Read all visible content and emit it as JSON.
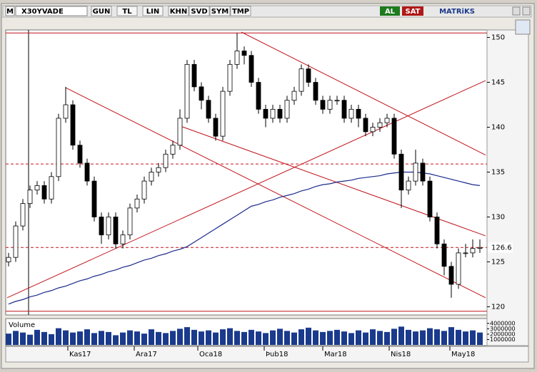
{
  "chart_data": {
    "type": "candlestick",
    "menu": "M",
    "title": "X30YVADE",
    "toolbar": [
      "GUN",
      "TL",
      "LIN",
      "KHN",
      "SVD",
      "SYM",
      "TMP"
    ],
    "buy": "AL",
    "sell": "SAT",
    "brand": "MATRiKS",
    "xlim": [
      -0.2,
      66.8
    ],
    "xticks": [
      {
        "value": 8.3,
        "label": "Kas17"
      },
      {
        "value": 17.6,
        "label": "Ara17"
      },
      {
        "value": 26.5,
        "label": "Oca18"
      },
      {
        "value": 35.8,
        "label": "Þub18"
      },
      {
        "value": 44,
        "label": "Mar18"
      },
      {
        "value": 53.3,
        "label": "Nis18"
      },
      {
        "value": 61.8,
        "label": "May18"
      }
    ],
    "ylim": [
      119.4,
      150.6
    ],
    "yticks": [
      120,
      125,
      130,
      135,
      140,
      145,
      150
    ],
    "last_price": 126.6,
    "open": [
      125,
      125.5,
      129,
      131.5,
      133,
      133.5,
      132,
      134.5,
      141,
      142.5,
      138,
      136,
      134,
      130,
      128,
      130,
      127,
      128,
      131,
      132,
      134,
      135,
      135.5,
      137,
      138,
      141,
      147,
      144.5,
      143,
      141,
      139,
      144,
      147,
      148.5,
      148,
      145,
      142,
      141,
      142,
      141,
      143,
      144,
      146.5,
      145,
      143,
      142,
      143,
      143,
      141,
      142,
      141,
      139.5,
      140,
      140.5,
      141,
      137,
      133,
      134,
      136,
      134,
      130,
      127,
      124.5,
      122.5,
      126,
      126,
      126.5
    ],
    "high": [
      126,
      129.5,
      132,
      133.5,
      134,
      134,
      135,
      141.5,
      144.5,
      143,
      138.5,
      136.5,
      134.5,
      130.5,
      130.5,
      130.5,
      128.5,
      131.5,
      132.5,
      134.5,
      135.5,
      136,
      137.5,
      138.5,
      142,
      147.5,
      147.5,
      145,
      143.5,
      141.5,
      144.5,
      147.5,
      150.5,
      149,
      148.5,
      145.5,
      142.5,
      142.5,
      142.5,
      143.5,
      144.5,
      147,
      147,
      145.5,
      143.5,
      143.5,
      143.5,
      143.5,
      142.5,
      142.5,
      141.5,
      140.5,
      141,
      141.5,
      141.5,
      137.5,
      134.5,
      137.5,
      136.5,
      134.5,
      130.5,
      127.5,
      125,
      126.5,
      127,
      127.5,
      127.5
    ],
    "low": [
      124.5,
      125,
      128.5,
      131,
      132.5,
      131.5,
      131.5,
      134,
      140.5,
      137.5,
      135.5,
      133.5,
      129.5,
      127,
      127.5,
      126.5,
      126.5,
      127.5,
      130.5,
      131.5,
      133.5,
      134.5,
      135,
      136.5,
      137.5,
      140.5,
      144,
      142,
      140.5,
      138.5,
      138.5,
      143.5,
      146.5,
      147,
      144.5,
      141.5,
      140,
      140.5,
      140.5,
      140.5,
      142.5,
      143.5,
      144.5,
      142.5,
      141.5,
      141.5,
      142.5,
      140.5,
      140.5,
      140,
      139,
      139,
      139.5,
      140,
      136.5,
      131,
      132.5,
      133.5,
      133.5,
      129.5,
      126.5,
      123.5,
      121,
      122,
      125.5,
      125.5,
      126
    ],
    "close": [
      125.5,
      129,
      131.5,
      133,
      133.5,
      132,
      134.5,
      141,
      142.5,
      138,
      136,
      134,
      130,
      128,
      130,
      127,
      128,
      131,
      132,
      134,
      135,
      135.5,
      137,
      138,
      141,
      147,
      144.5,
      143,
      141,
      139,
      144,
      147,
      148.5,
      148,
      145,
      142,
      141,
      142,
      141,
      143,
      144,
      146.5,
      145,
      143,
      142,
      143,
      143,
      141,
      142,
      141,
      139.5,
      140,
      140.5,
      141,
      137,
      133,
      134,
      136,
      134,
      130,
      127,
      124.5,
      122.5,
      126,
      126,
      126.5,
      126.6
    ],
    "up_color": "#ffffff",
    "down_color": "#000000",
    "moving_average": {
      "color": "#1c2a8c",
      "values": [
        120.3,
        120.6,
        120.8,
        121.1,
        121.3,
        121.6,
        121.8,
        122.1,
        122.3,
        122.6,
        122.9,
        123.1,
        123.4,
        123.6,
        123.9,
        124.1,
        124.4,
        124.6,
        124.9,
        125.2,
        125.4,
        125.7,
        125.9,
        126.2,
        126.4,
        126.7,
        127.2,
        127.7,
        128.2,
        128.7,
        129.2,
        129.7,
        130.2,
        130.7,
        131.2,
        131.4,
        131.7,
        131.9,
        132.2,
        132.4,
        132.6,
        132.9,
        133.1,
        133.4,
        133.6,
        133.7,
        133.9,
        134,
        134.1,
        134.3,
        134.4,
        134.5,
        134.6,
        134.8,
        134.9,
        135,
        135,
        135,
        134.9,
        134.8,
        134.6,
        134.4,
        134.2,
        134,
        133.8,
        133.6,
        133.5
      ]
    },
    "hlines": [
      {
        "value": 150.5,
        "style": "solid"
      },
      {
        "value": 119.5,
        "style": "solid"
      },
      {
        "value": 135.9,
        "style": "dashed"
      },
      {
        "value": 126.6,
        "style": "dashed"
      }
    ],
    "trendlines": [
      {
        "x": [
          32.6,
          66.8
        ],
        "y": [
          150.6,
          136.9
        ]
      },
      {
        "x": [
          8,
          66.8
        ],
        "y": [
          144.4,
          121
        ]
      },
      {
        "x": [
          23.8,
          66.8
        ],
        "y": [
          140.2,
          127.9
        ]
      },
      {
        "x": [
          -0.2,
          66.8
        ],
        "y": [
          121,
          145.2
        ]
      }
    ],
    "line_color": "#c0141c",
    "volume": {
      "label": "Volume",
      "color": "#1a3a8c",
      "ylim": [
        0,
        4500000
      ],
      "yticks": [
        1000000,
        2000000,
        3000000,
        4000000
      ],
      "values": [
        2100000,
        2600000,
        2300000,
        1900000,
        2800000,
        2400000,
        2000000,
        3100000,
        2700000,
        2300000,
        2500000,
        2900000,
        2200000,
        2600000,
        2400000,
        1800000,
        2300000,
        2700000,
        2500000,
        2100000,
        2900000,
        2400000,
        2200000,
        2600000,
        3000000,
        3300000,
        2800000,
        2500000,
        2700000,
        2300000,
        2900000,
        3100000,
        2600000,
        2400000,
        2800000,
        2500000,
        2200000,
        2700000,
        3000000,
        2600000,
        2300000,
        2900000,
        3200000,
        2700000,
        2400000,
        2600000,
        2800000,
        2500000,
        2200000,
        2700000,
        2300000,
        2900000,
        2600000,
        2400000,
        3000000,
        3400000,
        2800000,
        2500000,
        2700000,
        3100000,
        2900000,
        2600000,
        3300000,
        2800000,
        2500000,
        2700000,
        2300000
      ]
    }
  }
}
